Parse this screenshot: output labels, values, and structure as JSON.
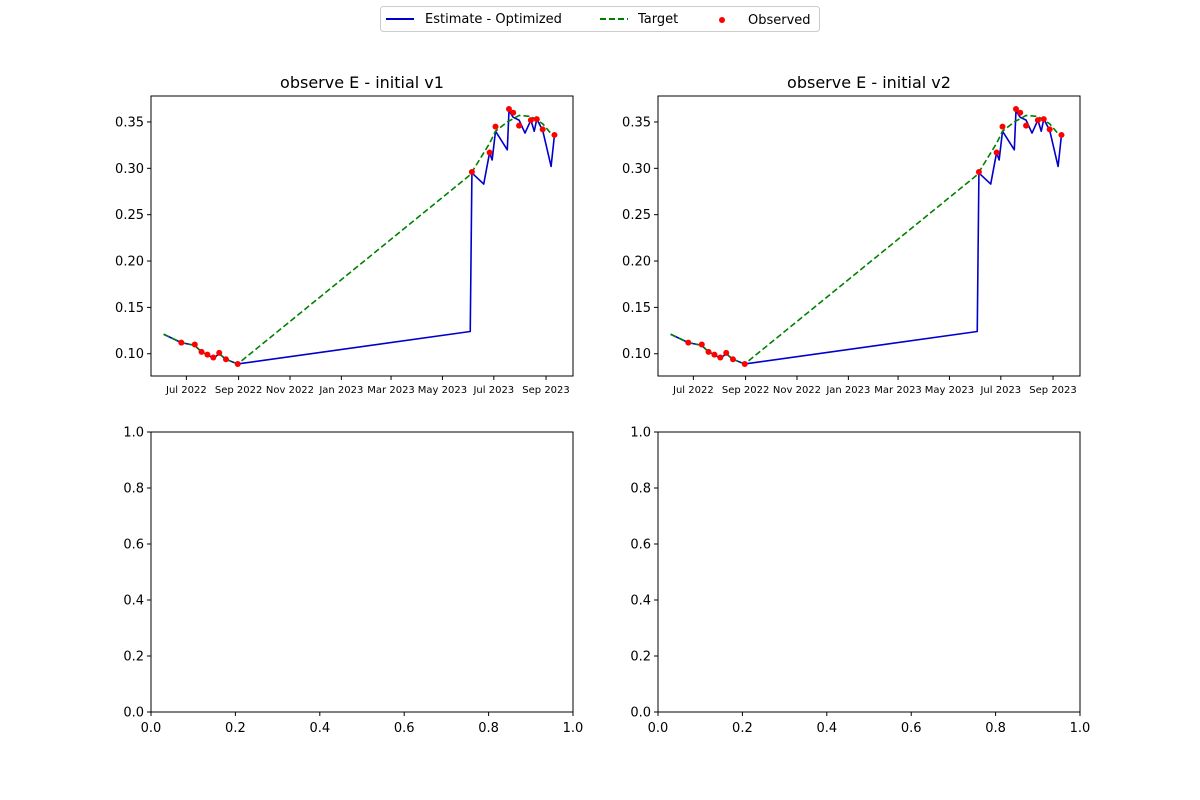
{
  "legend": {
    "placement": "top-center",
    "entries": [
      {
        "label": "Estimate - Optimized",
        "color": "#0000cc",
        "style": "solid"
      },
      {
        "label": "Target",
        "color": "#008000",
        "style": "dashed"
      },
      {
        "label": "Observed",
        "color": "#ff0000",
        "style": "marker"
      }
    ]
  },
  "chart_data": [
    {
      "type": "line",
      "title": "observe E - initial v1",
      "xlabel": "",
      "ylabel": "",
      "x_type": "date",
      "xlim": [
        "2022-05-20",
        "2023-10-03"
      ],
      "ylim": [
        0.076,
        0.378
      ],
      "x_ticks": [
        "2022-07-01",
        "2022-09-01",
        "2022-11-01",
        "2023-01-01",
        "2023-03-01",
        "2023-05-01",
        "2023-07-01",
        "2023-09-01"
      ],
      "x_tick_labels": [
        "Jul 2022",
        "Sep 2022",
        "Nov 2022",
        "Jan 2023",
        "Mar 2023",
        "May 2023",
        "Jul 2023",
        "Sep 2023"
      ],
      "y_ticks": [
        0.1,
        0.15,
        0.2,
        0.25,
        0.3,
        0.35
      ],
      "y_tick_labels": [
        "0.10",
        "0.15",
        "0.20",
        "0.25",
        "0.30",
        "0.35"
      ],
      "grid": false,
      "series": [
        {
          "name": "Estimate - Optimized",
          "color": "#0000cc",
          "style": "solid",
          "points": [
            [
              "2022-06-04",
              0.121
            ],
            [
              "2022-06-25",
              0.112
            ],
            [
              "2022-07-11",
              0.109
            ],
            [
              "2022-07-19",
              0.102
            ],
            [
              "2022-07-26",
              0.099
            ],
            [
              "2022-08-02",
              0.095
            ],
            [
              "2022-08-09",
              0.1
            ],
            [
              "2022-08-17",
              0.094
            ],
            [
              "2022-08-31",
              0.089
            ],
            [
              "2023-06-03",
              0.124
            ],
            [
              "2023-06-05",
              0.295
            ],
            [
              "2023-06-19",
              0.283
            ],
            [
              "2023-06-26",
              0.317
            ],
            [
              "2023-06-29",
              0.309
            ],
            [
              "2023-07-03",
              0.34
            ],
            [
              "2023-07-17",
              0.32
            ],
            [
              "2023-07-19",
              0.362
            ],
            [
              "2023-07-24",
              0.355
            ],
            [
              "2023-07-31",
              0.352
            ],
            [
              "2023-08-07",
              0.338
            ],
            [
              "2023-08-14",
              0.352
            ],
            [
              "2023-08-18",
              0.34
            ],
            [
              "2023-08-21",
              0.353
            ],
            [
              "2023-08-28",
              0.341
            ],
            [
              "2023-09-07",
              0.302
            ],
            [
              "2023-09-11",
              0.336
            ]
          ]
        },
        {
          "name": "Target",
          "color": "#008000",
          "style": "dashed",
          "points": [
            [
              "2022-06-04",
              0.121
            ],
            [
              "2022-06-25",
              0.112
            ],
            [
              "2022-07-11",
              0.109
            ],
            [
              "2022-07-19",
              0.102
            ],
            [
              "2022-07-26",
              0.099
            ],
            [
              "2022-08-02",
              0.095
            ],
            [
              "2022-08-09",
              0.1
            ],
            [
              "2022-08-17",
              0.094
            ],
            [
              "2022-08-31",
              0.089
            ],
            [
              "2023-06-03",
              0.293
            ],
            [
              "2023-06-26",
              0.327
            ],
            [
              "2023-07-03",
              0.34
            ],
            [
              "2023-07-17",
              0.35
            ],
            [
              "2023-07-31",
              0.357
            ],
            [
              "2023-08-14",
              0.356
            ],
            [
              "2023-08-28",
              0.348
            ],
            [
              "2023-09-11",
              0.333
            ]
          ]
        },
        {
          "name": "Observed",
          "color": "#ff0000",
          "style": "marker",
          "points": [
            [
              "2022-06-25",
              0.112
            ],
            [
              "2022-07-11",
              0.11
            ],
            [
              "2022-07-19",
              0.102
            ],
            [
              "2022-07-26",
              0.099
            ],
            [
              "2022-08-02",
              0.096
            ],
            [
              "2022-08-09",
              0.101
            ],
            [
              "2022-08-17",
              0.094
            ],
            [
              "2022-08-31",
              0.089
            ],
            [
              "2023-06-05",
              0.296
            ],
            [
              "2023-06-26",
              0.317
            ],
            [
              "2023-07-03",
              0.345
            ],
            [
              "2023-07-19",
              0.364
            ],
            [
              "2023-07-24",
              0.36
            ],
            [
              "2023-07-31",
              0.346
            ],
            [
              "2023-08-14",
              0.352
            ],
            [
              "2023-08-21",
              0.353
            ],
            [
              "2023-08-28",
              0.342
            ],
            [
              "2023-09-11",
              0.336
            ]
          ]
        }
      ]
    },
    {
      "type": "line",
      "title": "observe E - initial v2",
      "xlabel": "",
      "ylabel": "",
      "x_type": "date",
      "xlim": [
        "2022-05-20",
        "2023-10-03"
      ],
      "ylim": [
        0.076,
        0.378
      ],
      "x_ticks": [
        "2022-07-01",
        "2022-09-01",
        "2022-11-01",
        "2023-01-01",
        "2023-03-01",
        "2023-05-01",
        "2023-07-01",
        "2023-09-01"
      ],
      "x_tick_labels": [
        "Jul 2022",
        "Sep 2022",
        "Nov 2022",
        "Jan 2023",
        "Mar 2023",
        "May 2023",
        "Jul 2023",
        "Sep 2023"
      ],
      "y_ticks": [
        0.1,
        0.15,
        0.2,
        0.25,
        0.3,
        0.35
      ],
      "y_tick_labels": [
        "0.10",
        "0.15",
        "0.20",
        "0.25",
        "0.30",
        "0.35"
      ],
      "grid": false,
      "series": [
        {
          "name": "Estimate - Optimized",
          "color": "#0000cc",
          "style": "solid",
          "points": [
            [
              "2022-06-04",
              0.121
            ],
            [
              "2022-06-25",
              0.112
            ],
            [
              "2022-07-11",
              0.109
            ],
            [
              "2022-07-19",
              0.102
            ],
            [
              "2022-07-26",
              0.099
            ],
            [
              "2022-08-02",
              0.095
            ],
            [
              "2022-08-09",
              0.1
            ],
            [
              "2022-08-17",
              0.094
            ],
            [
              "2022-08-31",
              0.089
            ],
            [
              "2023-06-03",
              0.124
            ],
            [
              "2023-06-05",
              0.295
            ],
            [
              "2023-06-19",
              0.283
            ],
            [
              "2023-06-26",
              0.317
            ],
            [
              "2023-06-29",
              0.309
            ],
            [
              "2023-07-03",
              0.34
            ],
            [
              "2023-07-17",
              0.32
            ],
            [
              "2023-07-19",
              0.362
            ],
            [
              "2023-07-24",
              0.355
            ],
            [
              "2023-07-31",
              0.352
            ],
            [
              "2023-08-07",
              0.338
            ],
            [
              "2023-08-14",
              0.352
            ],
            [
              "2023-08-18",
              0.34
            ],
            [
              "2023-08-21",
              0.353
            ],
            [
              "2023-08-28",
              0.341
            ],
            [
              "2023-09-07",
              0.302
            ],
            [
              "2023-09-11",
              0.336
            ]
          ]
        },
        {
          "name": "Target",
          "color": "#008000",
          "style": "dashed",
          "points": [
            [
              "2022-06-04",
              0.121
            ],
            [
              "2022-06-25",
              0.112
            ],
            [
              "2022-07-11",
              0.109
            ],
            [
              "2022-07-19",
              0.102
            ],
            [
              "2022-07-26",
              0.099
            ],
            [
              "2022-08-02",
              0.095
            ],
            [
              "2022-08-09",
              0.1
            ],
            [
              "2022-08-17",
              0.094
            ],
            [
              "2022-08-31",
              0.089
            ],
            [
              "2023-06-03",
              0.293
            ],
            [
              "2023-06-26",
              0.327
            ],
            [
              "2023-07-03",
              0.34
            ],
            [
              "2023-07-17",
              0.35
            ],
            [
              "2023-07-31",
              0.357
            ],
            [
              "2023-08-14",
              0.356
            ],
            [
              "2023-08-28",
              0.348
            ],
            [
              "2023-09-11",
              0.333
            ]
          ]
        },
        {
          "name": "Observed",
          "color": "#ff0000",
          "style": "marker",
          "points": [
            [
              "2022-06-25",
              0.112
            ],
            [
              "2022-07-11",
              0.11
            ],
            [
              "2022-07-19",
              0.102
            ],
            [
              "2022-07-26",
              0.099
            ],
            [
              "2022-08-02",
              0.096
            ],
            [
              "2022-08-09",
              0.101
            ],
            [
              "2022-08-17",
              0.094
            ],
            [
              "2022-08-31",
              0.089
            ],
            [
              "2023-06-05",
              0.296
            ],
            [
              "2023-06-26",
              0.317
            ],
            [
              "2023-07-03",
              0.345
            ],
            [
              "2023-07-19",
              0.364
            ],
            [
              "2023-07-24",
              0.36
            ],
            [
              "2023-07-31",
              0.346
            ],
            [
              "2023-08-14",
              0.352
            ],
            [
              "2023-08-21",
              0.353
            ],
            [
              "2023-08-28",
              0.342
            ],
            [
              "2023-09-11",
              0.336
            ]
          ]
        }
      ]
    },
    {
      "type": "line",
      "title": "",
      "xlim": [
        0,
        1
      ],
      "ylim": [
        0,
        1
      ],
      "x_ticks": [
        0,
        0.2,
        0.4,
        0.6,
        0.8,
        1.0
      ],
      "x_tick_labels": [
        "0.0",
        "0.2",
        "0.4",
        "0.6",
        "0.8",
        "1.0"
      ],
      "y_ticks": [
        0,
        0.2,
        0.4,
        0.6,
        0.8,
        1.0
      ],
      "y_tick_labels": [
        "0.0",
        "0.2",
        "0.4",
        "0.6",
        "0.8",
        "1.0"
      ],
      "grid": false,
      "series": []
    },
    {
      "type": "line",
      "title": "",
      "xlim": [
        0,
        1
      ],
      "ylim": [
        0,
        1
      ],
      "x_ticks": [
        0,
        0.2,
        0.4,
        0.6,
        0.8,
        1.0
      ],
      "x_tick_labels": [
        "0.0",
        "0.2",
        "0.4",
        "0.6",
        "0.8",
        "1.0"
      ],
      "y_ticks": [
        0,
        0.2,
        0.4,
        0.6,
        0.8,
        1.0
      ],
      "y_tick_labels": [
        "0.0",
        "0.2",
        "0.4",
        "0.6",
        "0.8",
        "1.0"
      ],
      "grid": false,
      "series": []
    }
  ]
}
